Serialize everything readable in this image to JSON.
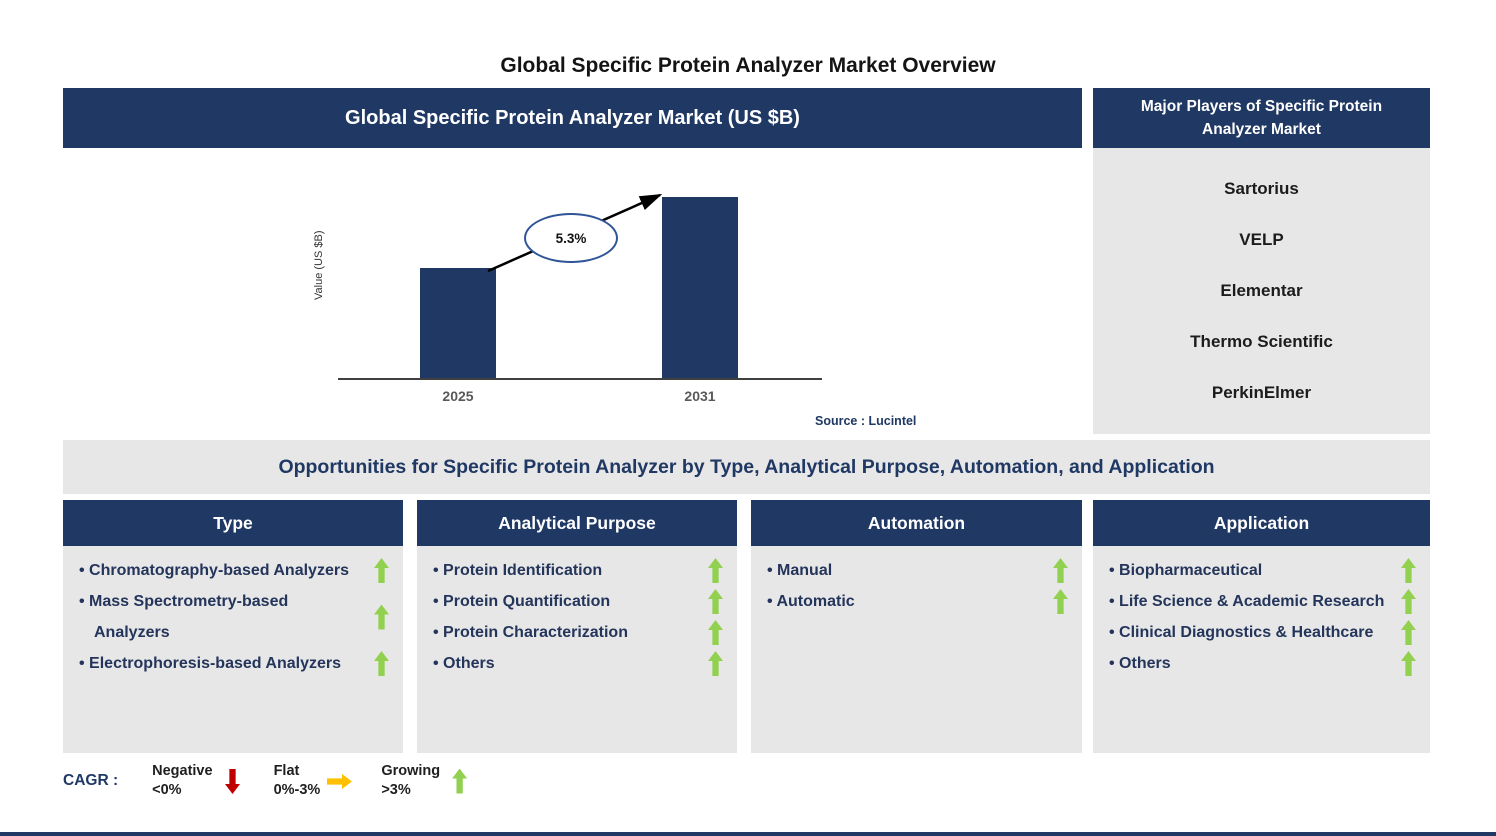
{
  "page": {
    "title": "Global Specific Protein Analyzer Market Overview"
  },
  "colors": {
    "accent_navy": "#1F3864",
    "panel_gray": "#E8E7E7",
    "growing_green": "#92D050",
    "negative_red": "#C00000",
    "flat_amber": "#FFC000"
  },
  "market_chart": {
    "header": "Global Specific Protein Analyzer Market (US $B)",
    "source": "Source : Lucintel"
  },
  "chart_data": {
    "type": "bar",
    "title": "Global Specific Protein Analyzer Market (US $B)",
    "categories": [
      "2025",
      "2031"
    ],
    "values": [
      1.0,
      1.65
    ],
    "units": "relative height (US $B axis values not labeled in figure)",
    "xlabel": "",
    "ylabel": "Value (US $B)",
    "cagr_label": "5.3%",
    "bar_color": "#1F3864",
    "grid": false,
    "legend": false,
    "annotation": "arrow from 2025 bar top to 2031 bar top through 5.3% oval"
  },
  "major_players": {
    "title": "Major Players of Specific Protein Analyzer Market",
    "items": [
      "Sartorius",
      "VELP",
      "Elementar",
      "Thermo Scientific",
      "PerkinElmer"
    ]
  },
  "opportunities": {
    "banner": "Opportunities for Specific Protein Analyzer by Type, Analytical Purpose, Automation, and Application",
    "columns": [
      {
        "title": "Type",
        "items": [
          {
            "label": "Chromatography-based Analyzers",
            "trend": "growing"
          },
          {
            "label": "Mass Spectrometry-based Analyzers",
            "trend": "growing"
          },
          {
            "label": "Electrophoresis-based Analyzers",
            "trend": "growing"
          }
        ]
      },
      {
        "title": "Analytical Purpose",
        "items": [
          {
            "label": "Protein Identification",
            "trend": "growing"
          },
          {
            "label": "Protein Quantification",
            "trend": "growing"
          },
          {
            "label": "Protein Characterization",
            "trend": "growing"
          },
          {
            "label": "Others",
            "trend": "growing"
          }
        ]
      },
      {
        "title": "Automation",
        "items": [
          {
            "label": "Manual",
            "trend": "growing"
          },
          {
            "label": "Automatic",
            "trend": "growing"
          }
        ]
      },
      {
        "title": "Application",
        "items": [
          {
            "label": "Biopharmaceutical",
            "trend": "growing"
          },
          {
            "label": "Life Science & Academic Research",
            "trend": "growing"
          },
          {
            "label": "Clinical Diagnostics & Healthcare",
            "trend": "growing"
          },
          {
            "label": "Others",
            "trend": "growing"
          }
        ]
      }
    ]
  },
  "legend": {
    "label": "CAGR :",
    "items": [
      {
        "name": "Negative",
        "range": "<0%",
        "direction": "down",
        "color": "#C00000"
      },
      {
        "name": "Flat",
        "range": "0%-3%",
        "direction": "right",
        "color": "#FFC000"
      },
      {
        "name": "Growing",
        "range": ">3%",
        "direction": "up",
        "color": "#92D050"
      }
    ]
  }
}
